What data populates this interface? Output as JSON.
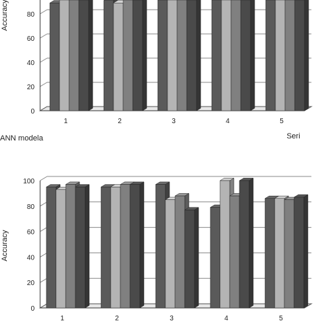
{
  "chart_data": [
    {
      "type": "bar",
      "view": "3d",
      "title": "",
      "xlabel": "Seri",
      "ylabel": "Accuracy",
      "caption": "ANN modela",
      "categories": [
        "1",
        "2",
        "3",
        "4",
        "5"
      ],
      "yticks": [
        0,
        20,
        40,
        60,
        80
      ],
      "ylim": [
        0,
        100
      ],
      "grid": true,
      "series": [
        {
          "values": [
            89,
            91,
            100,
            100,
            100
          ],
          "color": "#5a5a5a"
        },
        {
          "values": [
            100,
            89,
            100,
            100,
            100
          ],
          "color": "#b4b4b4"
        },
        {
          "values": [
            100,
            100,
            92,
            100,
            100
          ],
          "color": "#808080"
        },
        {
          "values": [
            100,
            100,
            100,
            100,
            100
          ],
          "color": "#4a4a4a"
        }
      ]
    },
    {
      "type": "bar",
      "view": "3d",
      "title": "",
      "xlabel": "",
      "ylabel": "Accuracy",
      "categories": [
        "1",
        "2",
        "3",
        "4",
        "5"
      ],
      "yticks": [
        0,
        20,
        40,
        60,
        80,
        100
      ],
      "ylim": [
        0,
        100
      ],
      "grid": true,
      "series": [
        {
          "values": [
            95,
            95,
            97,
            79,
            86
          ],
          "color": "#5a5a5a"
        },
        {
          "values": [
            93,
            95,
            85,
            100,
            86
          ],
          "color": "#b4b4b4"
        },
        {
          "values": [
            97,
            97,
            88,
            88,
            85
          ],
          "color": "#808080"
        },
        {
          "values": [
            95,
            97,
            77,
            100,
            87
          ],
          "color": "#4a4a4a"
        }
      ]
    }
  ]
}
